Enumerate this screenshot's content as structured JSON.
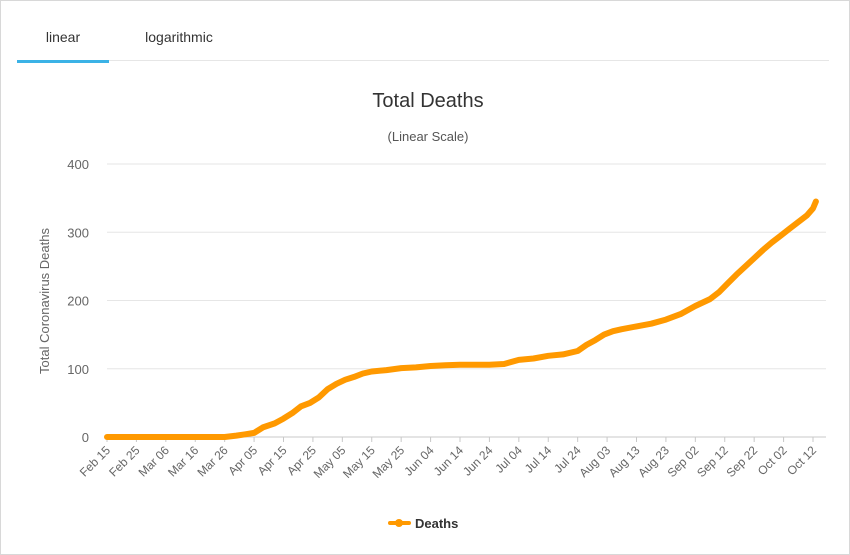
{
  "tabs": {
    "linear_label": "linear",
    "log_label": "logarithmic",
    "active": "linear"
  },
  "colors": {
    "series": "#ff9900",
    "tab_accent": "#3bb2e6",
    "grid": "#e6e6e6",
    "text": "#333333",
    "axis_text": "#666666"
  },
  "chart_data": {
    "type": "line",
    "title": "Total Deaths",
    "subtitle": "(Linear Scale)",
    "xlabel": "",
    "ylabel": "Total Coronavirus Deaths",
    "ylim": [
      0,
      400
    ],
    "yticks": [
      0,
      100,
      200,
      300,
      400
    ],
    "grid": true,
    "legend_position": "bottom-center",
    "categories": [
      "Feb 15",
      "Feb 25",
      "Mar 06",
      "Mar 16",
      "Mar 26",
      "Apr 05",
      "Apr 15",
      "Apr 25",
      "May 05",
      "May 15",
      "May 25",
      "Jun 04",
      "Jun 14",
      "Jun 24",
      "Jul 04",
      "Jul 14",
      "Jul 24",
      "Aug 03",
      "Aug 13",
      "Aug 23",
      "Sep 02",
      "Sep 12",
      "Sep 22",
      "Oct 02",
      "Oct 12"
    ],
    "series": [
      {
        "name": "Deaths",
        "points": [
          [
            0,
            0
          ],
          [
            10,
            0
          ],
          [
            20,
            0
          ],
          [
            30,
            0
          ],
          [
            40,
            0
          ],
          [
            44,
            2
          ],
          [
            47,
            4
          ],
          [
            50,
            6
          ],
          [
            53,
            14
          ],
          [
            57,
            20
          ],
          [
            60,
            27
          ],
          [
            63,
            35
          ],
          [
            66,
            45
          ],
          [
            69,
            50
          ],
          [
            72,
            58
          ],
          [
            75,
            70
          ],
          [
            78,
            78
          ],
          [
            81,
            84
          ],
          [
            84,
            88
          ],
          [
            87,
            93
          ],
          [
            90,
            96
          ],
          [
            95,
            98
          ],
          [
            100,
            101
          ],
          [
            105,
            102
          ],
          [
            110,
            104
          ],
          [
            115,
            105
          ],
          [
            120,
            106
          ],
          [
            125,
            106
          ],
          [
            130,
            106
          ],
          [
            135,
            107
          ],
          [
            140,
            113
          ],
          [
            145,
            115
          ],
          [
            150,
            119
          ],
          [
            155,
            121
          ],
          [
            160,
            126
          ],
          [
            163,
            135
          ],
          [
            166,
            142
          ],
          [
            169,
            150
          ],
          [
            172,
            155
          ],
          [
            175,
            158
          ],
          [
            180,
            162
          ],
          [
            185,
            166
          ],
          [
            190,
            172
          ],
          [
            195,
            180
          ],
          [
            200,
            192
          ],
          [
            205,
            202
          ],
          [
            208,
            212
          ],
          [
            211,
            225
          ],
          [
            214,
            238
          ],
          [
            217,
            250
          ],
          [
            220,
            262
          ],
          [
            223,
            274
          ],
          [
            226,
            285
          ],
          [
            229,
            295
          ],
          [
            232,
            305
          ],
          [
            235,
            315
          ],
          [
            238,
            325
          ],
          [
            240,
            335
          ],
          [
            241,
            345
          ]
        ]
      }
    ]
  }
}
